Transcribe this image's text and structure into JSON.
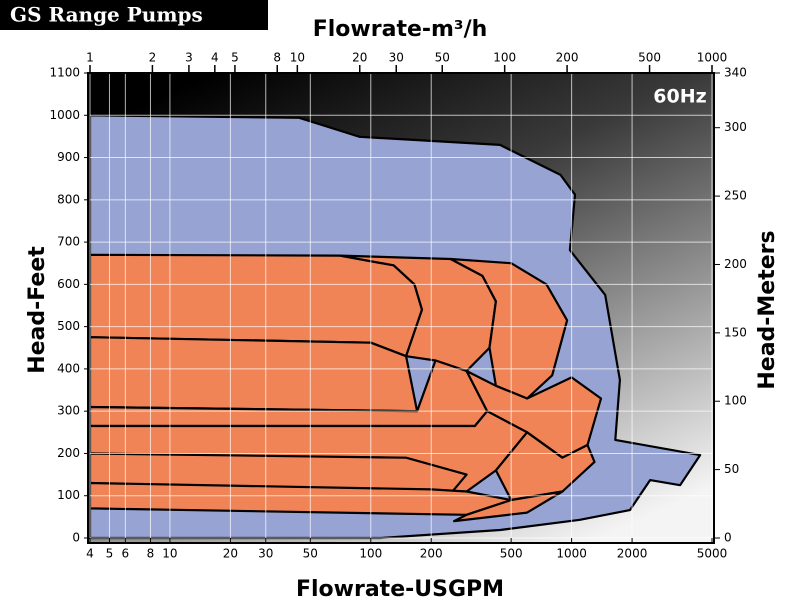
{
  "chart_data": {
    "type": "region",
    "title": "GS Range Pumps",
    "annotation": "60Hz",
    "x_label": "Flowrate-USGPM",
    "x2_label": "Flowrate-m³/h",
    "y_label": "Head-Feet",
    "y2_label": "Head-Meters",
    "xscale": "log",
    "xlim": [
      4,
      5000
    ],
    "xticks": [
      4,
      5,
      6,
      8,
      10,
      20,
      30,
      50,
      100,
      200,
      500,
      1000,
      2000,
      5000
    ],
    "x2lim": [
      1,
      1000
    ],
    "x2ticks": [
      1,
      2,
      3,
      4,
      5,
      8,
      10,
      20,
      30,
      50,
      100,
      200,
      500,
      1000
    ],
    "ylim": [
      0,
      1100
    ],
    "yticks": [
      0,
      100,
      200,
      300,
      400,
      500,
      600,
      700,
      800,
      900,
      1000,
      1100
    ],
    "y2lim": [
      0,
      340
    ],
    "y2ticks": [
      0,
      50,
      100,
      150,
      200,
      250,
      300,
      340
    ],
    "grid": true,
    "envelope": {
      "color": "#97a3d2",
      "x": [
        4,
        44,
        88,
        440,
        880,
        1040,
        980,
        1470,
        1740,
        1650,
        4360,
        3470,
        2460,
        1950,
        1100,
        440,
        111,
        4
      ],
      "y": [
        1000,
        994,
        949,
        930,
        859,
        812,
        681,
        575,
        374,
        232,
        196,
        125,
        137,
        66,
        43,
        19,
        0,
        0
      ]
    },
    "coverage_color": "#f08457",
    "coverage": [
      {
        "x": [
          4,
          70,
          130,
          165,
          180,
          150,
          100,
          4
        ],
        "y": [
          670,
          668,
          645,
          600,
          540,
          430,
          462,
          475
        ]
      },
      {
        "x": [
          70,
          250,
          360,
          420,
          390,
          300,
          210,
          150,
          180,
          165,
          130
        ],
        "y": [
          668,
          660,
          620,
          560,
          450,
          395,
          420,
          430,
          540,
          600,
          645
        ]
      },
      {
        "x": [
          250,
          500,
          750,
          950,
          800,
          600,
          420,
          390,
          420,
          360
        ],
        "y": [
          660,
          650,
          600,
          515,
          385,
          330,
          360,
          450,
          560,
          620
        ]
      },
      {
        "x": [
          4,
          100,
          150,
          170,
          4
        ],
        "y": [
          475,
          462,
          430,
          300,
          310
        ]
      },
      {
        "x": [
          4,
          170,
          210,
          300,
          380,
          330,
          4
        ],
        "y": [
          310,
          300,
          420,
          395,
          300,
          265,
          265
        ]
      },
      {
        "x": [
          380,
          300,
          420,
          600,
          1000,
          1400,
          1200,
          900,
          600
        ],
        "y": [
          300,
          395,
          360,
          330,
          380,
          330,
          220,
          190,
          250
        ]
      },
      {
        "x": [
          4,
          330,
          380,
          600,
          420,
          300,
          4
        ],
        "y": [
          265,
          265,
          300,
          250,
          160,
          110,
          130
        ]
      },
      {
        "x": [
          4,
          150,
          300,
          240,
          4
        ],
        "y": [
          200,
          190,
          150,
          95,
          110
        ]
      },
      {
        "x": [
          600,
          900,
          1200,
          1300,
          900,
          500,
          420
        ],
        "y": [
          250,
          190,
          220,
          180,
          110,
          90,
          160
        ]
      },
      {
        "x": [
          4,
          200,
          300,
          500,
          300,
          4
        ],
        "y": [
          130,
          115,
          110,
          90,
          55,
          70
        ]
      },
      {
        "x": [
          500,
          900,
          600,
          260,
          300
        ],
        "y": [
          90,
          110,
          60,
          40,
          55
        ]
      }
    ]
  }
}
